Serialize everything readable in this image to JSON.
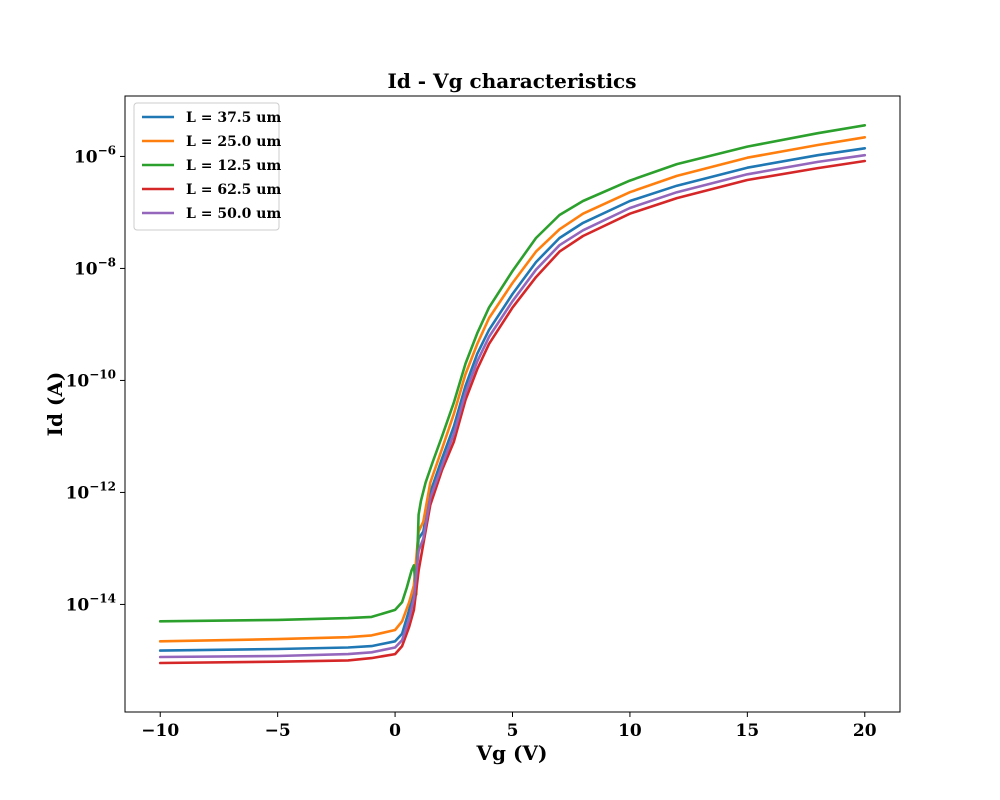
{
  "chart_data": {
    "type": "line",
    "title": "Id - Vg characteristics",
    "xlabel": "Vg (V)",
    "ylabel": "Id (A)",
    "xlim": [
      -11.5,
      21.5
    ],
    "ylim": [
      1.2e-16,
      1.2e-05
    ],
    "yscale": "log",
    "grid": false,
    "legend_position": "top-left",
    "x_ticks": [
      -10,
      -5,
      0,
      5,
      10,
      15,
      20
    ],
    "x_tick_labels": [
      "−10",
      "−5",
      "0",
      "5",
      "10",
      "15",
      "20"
    ],
    "y_ticks": [
      1e-14,
      1e-12,
      1e-10,
      1e-08,
      1e-06
    ],
    "y_tick_bases": [
      "10",
      "10",
      "10",
      "10",
      "10"
    ],
    "y_tick_exponents": [
      "−14",
      "−12",
      "−10",
      "−8",
      "−6"
    ],
    "series": [
      {
        "name": "L = 37.5 um",
        "color": "#1f77b4",
        "x": [
          -10,
          -5,
          -2,
          -1,
          0,
          0.3,
          0.6,
          0.8,
          1,
          1.2,
          1.5,
          2,
          2.5,
          3,
          3.5,
          4,
          5,
          6,
          7,
          8,
          10,
          12,
          15,
          18,
          20
        ],
        "y": [
          1.5e-15,
          1.6e-15,
          1.7e-15,
          1.8e-15,
          2.2e-15,
          3e-15,
          8e-15,
          2e-14,
          1.5e-13,
          2e-13,
          1e-12,
          4e-12,
          1.5e-11,
          8e-11,
          3e-10,
          8e-10,
          3.5e-09,
          1.3e-08,
          3.5e-08,
          6.5e-08,
          1.6e-07,
          3e-07,
          6.3e-07,
          1.05e-06,
          1.4e-06
        ]
      },
      {
        "name": "L = 25.0 um",
        "color": "#ff7f0e",
        "x": [
          -10,
          -5,
          -2,
          -1,
          0,
          0.3,
          0.6,
          0.8,
          1,
          1.2,
          1.5,
          2,
          2.5,
          3,
          3.5,
          4,
          5,
          6,
          7,
          8,
          10,
          12,
          15,
          18,
          20
        ],
        "y": [
          2.2e-15,
          2.4e-15,
          2.6e-15,
          2.8e-15,
          3.5e-15,
          5e-15,
          1.1e-14,
          2.2e-14,
          2e-13,
          3e-13,
          1.5e-12,
          6e-12,
          2.5e-11,
          1.3e-10,
          4.5e-10,
          1.3e-09,
          5.5e-09,
          2e-08,
          5e-08,
          9.5e-08,
          2.3e-07,
          4.5e-07,
          9.5e-07,
          1.6e-06,
          2.2e-06
        ]
      },
      {
        "name": "L = 12.5 um",
        "color": "#2ca02c",
        "x": [
          -10,
          -5,
          -2,
          -1,
          0,
          0.3,
          0.5,
          0.7,
          0.8,
          0.9,
          1,
          1.1,
          1.3,
          1.6,
          2,
          2.5,
          3,
          3.5,
          4,
          5,
          6,
          7,
          8,
          10,
          12,
          15,
          18,
          20
        ],
        "y": [
          5e-15,
          5.3e-15,
          5.7e-15,
          6e-15,
          8e-15,
          1.1e-14,
          2e-14,
          4e-14,
          5e-14,
          1.5e-14,
          4e-13,
          7e-13,
          1.5e-12,
          3.5e-12,
          1e-11,
          4e-11,
          2e-10,
          7e-10,
          2e-09,
          9e-09,
          3.5e-08,
          9e-08,
          1.6e-07,
          3.7e-07,
          7.3e-07,
          1.5e-06,
          2.6e-06,
          3.6e-06
        ]
      },
      {
        "name": "L = 62.5 um",
        "color": "#d62728",
        "x": [
          -10,
          -5,
          -2,
          -1,
          0,
          0.3,
          0.6,
          0.8,
          1,
          1.2,
          1.5,
          2,
          2.5,
          3,
          3.5,
          4,
          5,
          6,
          7,
          8,
          10,
          12,
          15,
          18,
          20
        ],
        "y": [
          9e-16,
          9.5e-16,
          1e-15,
          1.1e-15,
          1.3e-15,
          1.8e-15,
          4e-15,
          8e-15,
          4e-14,
          1.2e-13,
          6e-13,
          2.5e-12,
          8e-12,
          4.5e-11,
          1.6e-10,
          4.5e-10,
          2e-09,
          7e-09,
          2e-08,
          3.8e-08,
          9.5e-08,
          1.8e-07,
          3.8e-07,
          6.2e-07,
          8.3e-07
        ]
      },
      {
        "name": "L = 50.0 um",
        "color": "#9467bd",
        "x": [
          -10,
          -5,
          -2,
          -1,
          0,
          0.3,
          0.6,
          0.8,
          1,
          1.2,
          1.5,
          2,
          2.5,
          3,
          3.5,
          4,
          5,
          6,
          7,
          8,
          10,
          12,
          15,
          18,
          20
        ],
        "y": [
          1.15e-15,
          1.2e-15,
          1.3e-15,
          1.4e-15,
          1.7e-15,
          2.3e-15,
          5.5e-15,
          1.3e-14,
          9e-14,
          1.5e-13,
          8e-13,
          3e-12,
          1.1e-11,
          6e-11,
          2.2e-10,
          6e-10,
          2.6e-09,
          9.5e-09,
          2.6e-08,
          4.8e-08,
          1.2e-07,
          2.3e-07,
          4.8e-07,
          8e-07,
          1.05e-06
        ]
      }
    ]
  }
}
